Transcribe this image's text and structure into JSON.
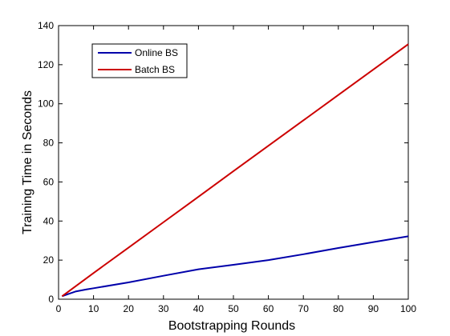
{
  "chart_data": {
    "type": "line",
    "title": "",
    "xlabel": "Bootstrapping Rounds",
    "ylabel": "Training Time in Seconds",
    "xlim": [
      0,
      100
    ],
    "ylim": [
      0,
      140
    ],
    "xticks": [
      0,
      10,
      20,
      30,
      40,
      50,
      60,
      70,
      80,
      90,
      100
    ],
    "yticks": [
      0,
      20,
      40,
      60,
      80,
      100,
      120,
      140
    ],
    "grid": false,
    "legend_position": "top-left",
    "series": [
      {
        "name": "Online BS",
        "color": "#0000aa",
        "x": [
          1,
          3,
          5,
          8,
          10,
          20,
          30,
          40,
          50,
          60,
          70,
          80,
          90,
          100
        ],
        "y": [
          1.5,
          2.8,
          4.0,
          5.0,
          5.6,
          8.6,
          12.0,
          15.3,
          17.6,
          20.0,
          23.0,
          26.2,
          29.2,
          32.2
        ]
      },
      {
        "name": "Batch BS",
        "color": "#cc0000",
        "x": [
          1,
          10,
          20,
          30,
          40,
          50,
          60,
          70,
          80,
          90,
          100
        ],
        "y": [
          1.5,
          13.4,
          26.4,
          39.4,
          52.4,
          65.5,
          78.5,
          91.5,
          104.5,
          117.5,
          130.5
        ]
      }
    ]
  }
}
